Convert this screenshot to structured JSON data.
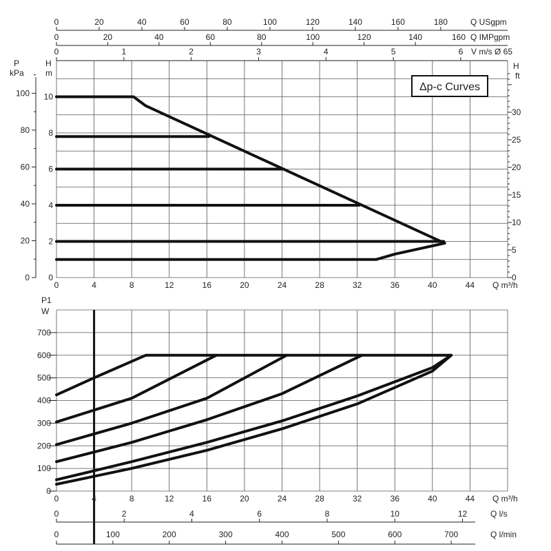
{
  "chart_data": [
    {
      "type": "line",
      "title": "Δp-c Curves",
      "x_axis": {
        "label": "Q m³/h",
        "range": [
          0,
          48
        ],
        "ticks": [
          0,
          4,
          8,
          12,
          16,
          20,
          24,
          28,
          32,
          36,
          40,
          44
        ]
      },
      "y_axis_left_m": {
        "label_top": "H",
        "label_unit": "m",
        "range": [
          0,
          12
        ],
        "ticks": [
          0,
          2,
          4,
          6,
          8,
          10
        ]
      },
      "y_axis_left_kpa": {
        "label_top": "P",
        "label_unit": "kPa",
        "ticks": [
          0,
          20,
          40,
          60,
          80,
          100
        ]
      },
      "y_axis_right_ft": {
        "label_top": "H",
        "label_unit": "ft",
        "ticks": [
          0,
          5,
          10,
          15,
          20,
          25,
          30
        ]
      },
      "top_axes": [
        {
          "label": "Q USgpm",
          "ticks": [
            0,
            20,
            40,
            60,
            80,
            100,
            120,
            140,
            160,
            180
          ],
          "per_unit": 4.4029
        },
        {
          "label": "Q IMPgpm",
          "ticks": [
            0,
            20,
            40,
            60,
            80,
            100,
            120,
            140
          ],
          "extra_label": "160",
          "per_unit": 3.6662
        },
        {
          "label": "V m/s Ø 65",
          "ticks": [
            0,
            1,
            2,
            3,
            4,
            5,
            6
          ],
          "per_unit": 0.1395
        }
      ],
      "series": [
        {
          "values": [
            [
              0,
              10
            ],
            [
              8.2,
              10
            ],
            [
              9.5,
              9.5
            ],
            [
              41.3,
              1.9
            ]
          ]
        },
        {
          "values": [
            [
              0,
              7.8
            ],
            [
              16.2,
              7.8
            ]
          ]
        },
        {
          "values": [
            [
              0,
              6
            ],
            [
              24.2,
              6
            ]
          ]
        },
        {
          "values": [
            [
              0,
              4
            ],
            [
              32.2,
              4
            ]
          ]
        },
        {
          "values": [
            [
              0,
              2
            ],
            [
              41.2,
              2
            ]
          ]
        },
        {
          "values": [
            [
              0,
              1
            ],
            [
              34,
              1
            ],
            [
              36,
              1.3
            ],
            [
              41.3,
              1.9
            ]
          ]
        }
      ]
    },
    {
      "type": "line",
      "x_axis": {
        "label": "Q m³/h",
        "range": [
          0,
          48
        ],
        "ticks": [
          0,
          4,
          8,
          12,
          16,
          20,
          24,
          28,
          32,
          36,
          40,
          44
        ]
      },
      "y_axis": {
        "label_top": "P1",
        "label_unit": "W",
        "range": [
          0,
          800
        ],
        "ticks": [
          0,
          100,
          200,
          300,
          400,
          500,
          600,
          700
        ]
      },
      "bottom_axes": [
        {
          "label": "Q l/s",
          "ticks": [
            0,
            2,
            4,
            6,
            8,
            10,
            12
          ],
          "per_unit": 0.27778
        },
        {
          "label": "Q l/min",
          "ticks": [
            0,
            100,
            200,
            300,
            400,
            500,
            600,
            700
          ],
          "per_unit": 16.6667
        }
      ],
      "marker_x": 4,
      "series": [
        {
          "values": [
            [
              0,
              425
            ],
            [
              4,
              500
            ],
            [
              9.5,
              600
            ],
            [
              42,
              600
            ]
          ]
        },
        {
          "values": [
            [
              0,
              305
            ],
            [
              8,
              410
            ],
            [
              17,
              600
            ]
          ]
        },
        {
          "values": [
            [
              0,
              205
            ],
            [
              8,
              300
            ],
            [
              16,
              410
            ],
            [
              24.5,
              600
            ]
          ]
        },
        {
          "values": [
            [
              0,
              130
            ],
            [
              8,
              215
            ],
            [
              16,
              315
            ],
            [
              24,
              430
            ],
            [
              32.5,
              600
            ]
          ]
        },
        {
          "values": [
            [
              0,
              50
            ],
            [
              8,
              130
            ],
            [
              16,
              215
            ],
            [
              24,
              310
            ],
            [
              32,
              420
            ],
            [
              40,
              545
            ],
            [
              42,
              600
            ]
          ]
        },
        {
          "values": [
            [
              0,
              30
            ],
            [
              8,
              100
            ],
            [
              16,
              180
            ],
            [
              24,
              275
            ],
            [
              32,
              385
            ],
            [
              40,
              530
            ],
            [
              42,
              600
            ]
          ]
        }
      ]
    }
  ]
}
